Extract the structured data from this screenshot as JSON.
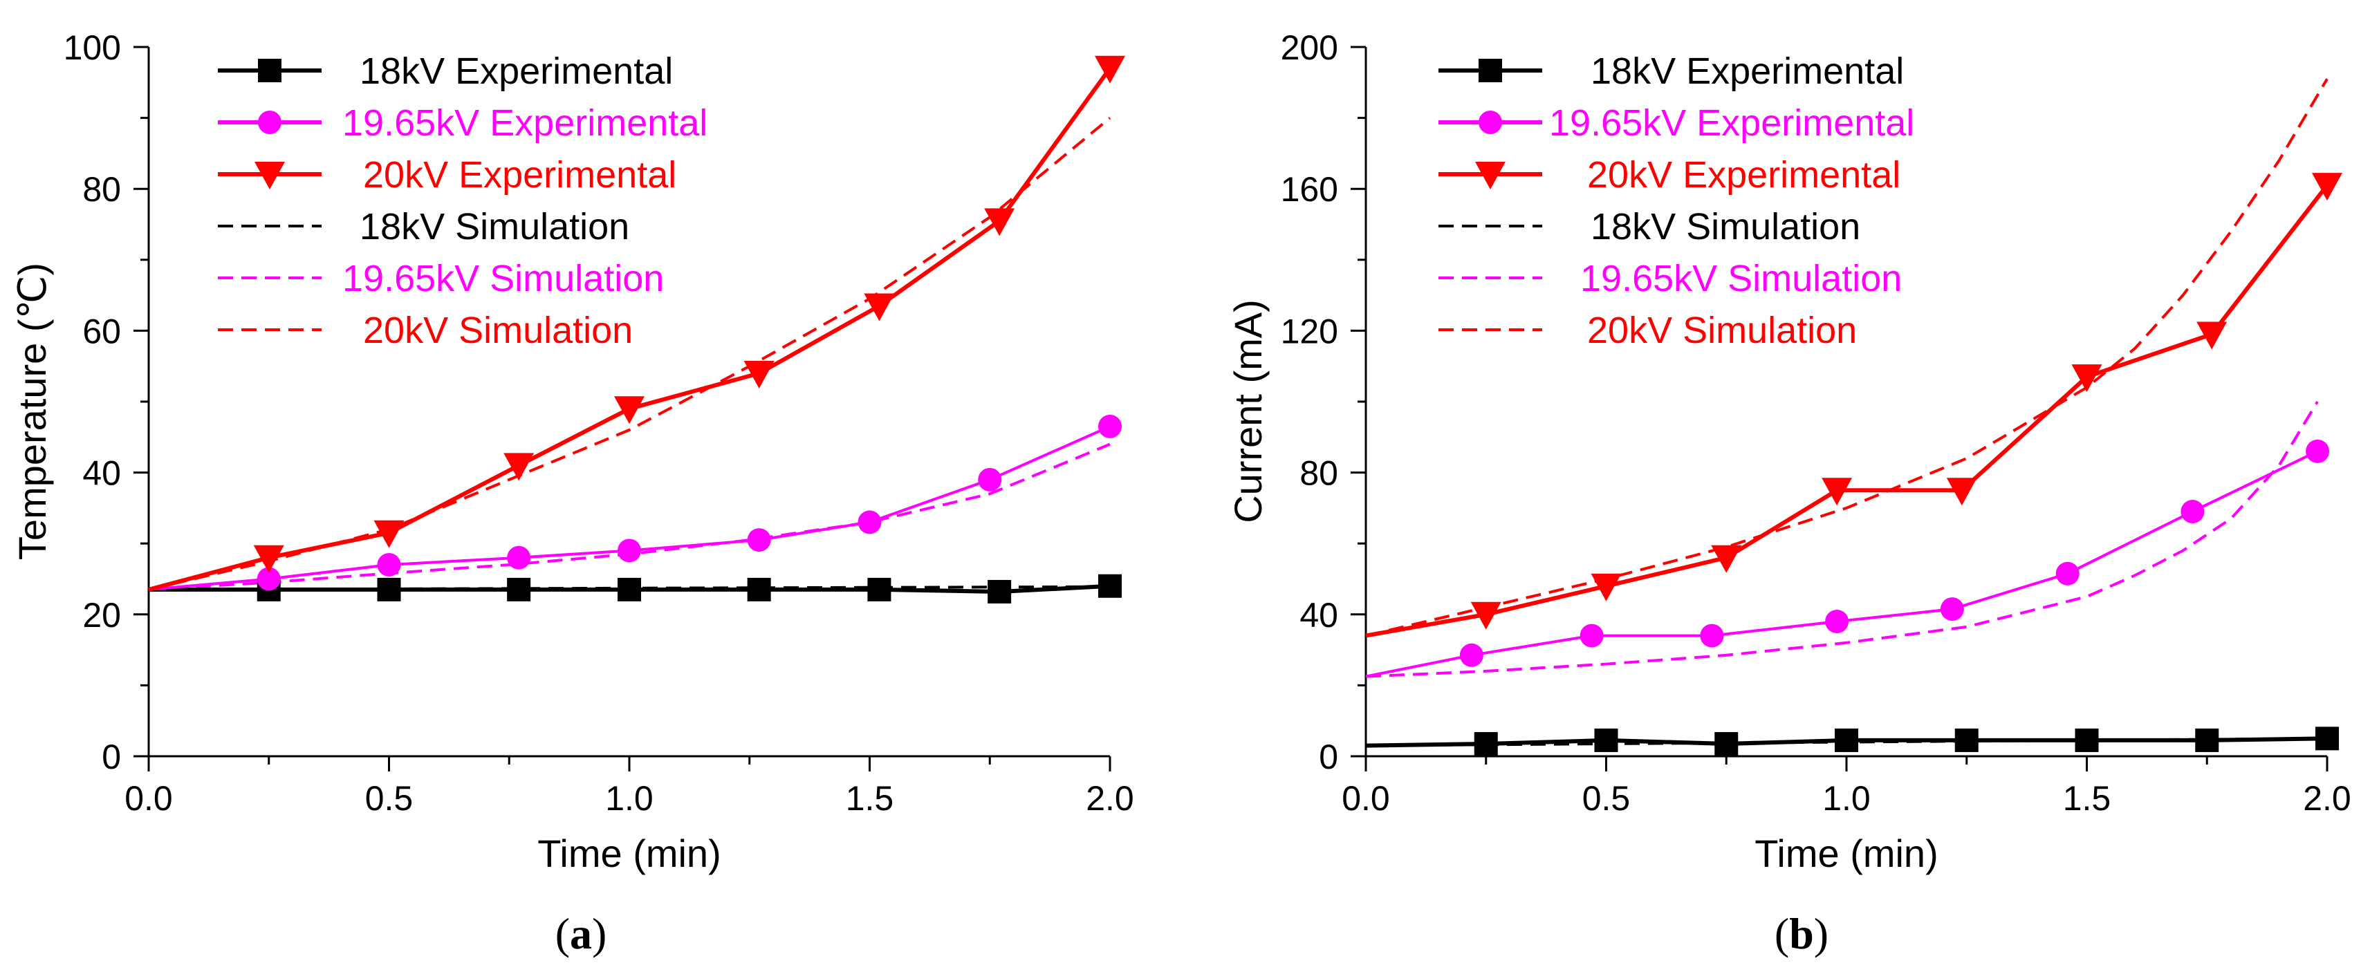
{
  "chart_data": [
    {
      "type": "line",
      "panel_label_open": "(",
      "panel_label_letter": "a",
      "panel_label_close": ")",
      "xlabel": "Time (min)",
      "ylabel": "Temperature (℃)",
      "xlim": [
        0,
        2
      ],
      "ylim": [
        0,
        100
      ],
      "xticks": [
        "0.0",
        "0.5",
        "1.0",
        "1.5",
        "2.0"
      ],
      "yticks": [
        "0",
        "20",
        "40",
        "60",
        "80",
        "100"
      ],
      "legend_position": "top-left",
      "series": [
        {
          "name": "18kV Experimental",
          "style": "solid",
          "marker": "square",
          "color": "#000000",
          "x": [
            0,
            0.25,
            0.5,
            0.77,
            1.0,
            1.27,
            1.52,
            1.77,
            2.0
          ],
          "y": [
            23.5,
            23.5,
            23.5,
            23.5,
            23.5,
            23.5,
            23.5,
            23.2,
            24
          ]
        },
        {
          "name": "19.65kV Experimental",
          "style": "solid",
          "marker": "circle",
          "color": "#ff00ff",
          "x": [
            0,
            0.25,
            0.5,
            0.77,
            1.0,
            1.27,
            1.5,
            1.75,
            2.0
          ],
          "y": [
            23.5,
            25,
            27,
            28,
            29,
            30.5,
            33,
            39,
            46.5
          ]
        },
        {
          "name": "20kV Experimental",
          "style": "solid",
          "marker": "triangle-down",
          "color": "#ff0000",
          "x": [
            0,
            0.25,
            0.5,
            0.77,
            1.0,
            1.27,
            1.52,
            1.77,
            2.0
          ],
          "y": [
            23.5,
            28,
            31.5,
            41,
            49,
            54,
            63.5,
            75.5,
            97
          ]
        },
        {
          "name": "18kV Simulation",
          "style": "dashed",
          "marker": "none",
          "color": "#000000",
          "x": [
            0,
            0.5,
            1.0,
            1.5,
            2.0
          ],
          "y": [
            23.5,
            23.6,
            23.7,
            23.8,
            23.9
          ]
        },
        {
          "name": "19.65kV Simulation",
          "style": "dashed",
          "marker": "none",
          "color": "#ff00ff",
          "x": [
            0,
            0.25,
            0.5,
            0.75,
            1.0,
            1.25,
            1.5,
            1.75,
            2.0
          ],
          "y": [
            23.5,
            24.5,
            25.8,
            27,
            28.5,
            30.5,
            33,
            37,
            44
          ]
        },
        {
          "name": "20kV Simulation",
          "style": "dashed",
          "marker": "none",
          "color": "#ff0000",
          "x": [
            0,
            0.25,
            0.5,
            0.75,
            1.0,
            1.25,
            1.5,
            1.75,
            2.0
          ],
          "y": [
            23.5,
            27.5,
            32,
            39,
            46,
            55,
            64.5,
            76,
            90
          ]
        }
      ]
    },
    {
      "type": "line",
      "panel_label_open": "(",
      "panel_label_letter": "b",
      "panel_label_close": ")",
      "xlabel": "Time (min)",
      "ylabel": "Current (mA)",
      "xlim": [
        0,
        2
      ],
      "ylim": [
        0,
        200
      ],
      "xticks": [
        "0.0",
        "0.5",
        "1.0",
        "1.5",
        "2.0"
      ],
      "yticks": [
        "0",
        "40",
        "80",
        "120",
        "160",
        "200"
      ],
      "legend_position": "top-left",
      "series": [
        {
          "name": "18kV Experimental",
          "style": "solid",
          "marker": "square",
          "color": "#000000",
          "x": [
            0,
            0.25,
            0.5,
            0.75,
            1.0,
            1.25,
            1.5,
            1.75,
            2.0
          ],
          "y": [
            3,
            3.5,
            4.5,
            3.5,
            4.5,
            4.5,
            4.5,
            4.5,
            5
          ]
        },
        {
          "name": "19.65kV Experimental",
          "style": "solid",
          "marker": "circle",
          "color": "#ff00ff",
          "x": [
            0,
            0.22,
            0.47,
            0.72,
            0.98,
            1.22,
            1.46,
            1.72,
            1.98
          ],
          "y": [
            22.5,
            28.5,
            34,
            34,
            38,
            41.5,
            51.5,
            69,
            86
          ]
        },
        {
          "name": "20kV Experimental",
          "style": "solid",
          "marker": "triangle-down",
          "color": "#ff0000",
          "x": [
            0,
            0.25,
            0.5,
            0.75,
            0.98,
            1.24,
            1.5,
            1.76,
            2.0
          ],
          "y": [
            34,
            40,
            48,
            56,
            75,
            75,
            107,
            119,
            161
          ]
        },
        {
          "name": "18kV Simulation",
          "style": "dashed",
          "marker": "none",
          "color": "#000000",
          "x": [
            0,
            0.5,
            1.0,
            1.5,
            2.0
          ],
          "y": [
            3,
            3.5,
            4,
            4.5,
            5
          ]
        },
        {
          "name": "19.65kV Simulation",
          "style": "dashed",
          "marker": "none",
          "color": "#ff00ff",
          "x": [
            0,
            0.25,
            0.5,
            0.75,
            1.0,
            1.25,
            1.5,
            1.6,
            1.7,
            1.8,
            1.9,
            1.98
          ],
          "y": [
            22.5,
            24,
            26,
            28.5,
            32,
            36.5,
            45,
            51,
            58,
            67,
            82,
            100
          ]
        },
        {
          "name": "20kV Simulation",
          "style": "dashed",
          "marker": "none",
          "color": "#ff0000",
          "x": [
            0,
            0.25,
            0.5,
            0.75,
            1.0,
            1.25,
            1.5,
            1.6,
            1.7,
            1.8,
            1.9,
            2.0
          ],
          "y": [
            34,
            42,
            50,
            59,
            70,
            84,
            104,
            115,
            130,
            148,
            168,
            191
          ]
        }
      ]
    }
  ]
}
